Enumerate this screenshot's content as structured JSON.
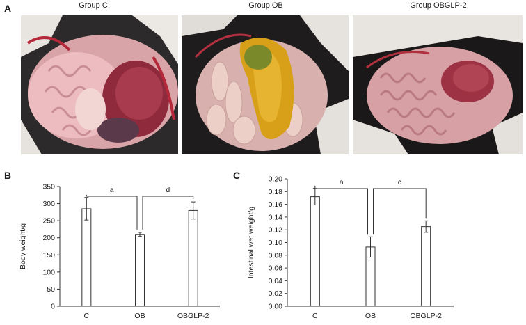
{
  "panel_a": {
    "letter": "A",
    "photos": [
      {
        "title": "Group C"
      },
      {
        "title": "Group OB"
      },
      {
        "title": "Group OBGLP-2"
      }
    ]
  },
  "panel_b": {
    "letter": "B"
  },
  "panel_c": {
    "letter": "C"
  },
  "chart_data": [
    {
      "type": "bar",
      "categories": [
        "C",
        "OB",
        "OBGLP-2"
      ],
      "values": [
        285,
        210,
        280
      ],
      "errors": [
        33,
        6,
        25
      ],
      "ylabel": "Body weight/g",
      "xlabel": "",
      "ylim": [
        0,
        350
      ],
      "yticks": [
        "0",
        "50",
        "100",
        "150",
        "200",
        "250",
        "300",
        "350"
      ],
      "significance": [
        {
          "from": "C",
          "to": "OB",
          "label": "a"
        },
        {
          "from": "OB",
          "to": "OBGLP-2",
          "label": "d"
        }
      ],
      "bar_color": "#ffffff",
      "grid": false
    },
    {
      "type": "bar",
      "categories": [
        "C",
        "OB",
        "OBGLP-2"
      ],
      "values": [
        0.172,
        0.093,
        0.125
      ],
      "errors": [
        0.013,
        0.016,
        0.009
      ],
      "ylabel": "Intestinal wet weight/g",
      "xlabel": "",
      "ylim": [
        0,
        0.2
      ],
      "yticks": [
        "0.00",
        "0.02",
        "0.04",
        "0.06",
        "0.08",
        "0.10",
        "0.12",
        "0.14",
        "0.16",
        "0.18",
        "0.20"
      ],
      "significance": [
        {
          "from": "C",
          "to": "OB",
          "label": "a"
        },
        {
          "from": "OB",
          "to": "OBGLP-2",
          "label": "c"
        }
      ],
      "bar_color": "#ffffff",
      "grid": false
    }
  ]
}
